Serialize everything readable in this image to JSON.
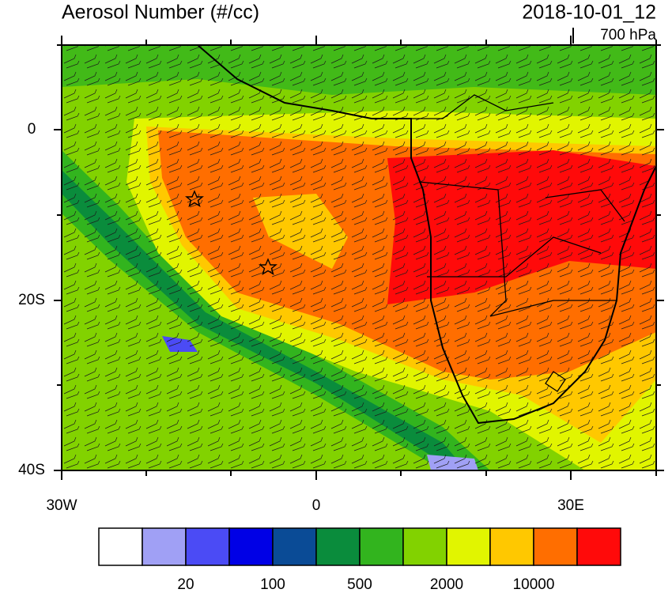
{
  "header": {
    "title": "Aerosol Number (#/cc)",
    "date": "2018-10-01_12",
    "level": "700 hPa"
  },
  "map": {
    "lat_labels": [
      "0",
      "20S",
      "40S"
    ],
    "lon_labels": [
      "30W",
      "0",
      "30E"
    ]
  },
  "colorbar": {
    "colors": [
      "#ffffff",
      "#a0a0f5",
      "#4b4bf5",
      "#0000e6",
      "#0a4b96",
      "#0a8c3c",
      "#32b41e",
      "#82d200",
      "#e1f500",
      "#ffc800",
      "#ff6e00",
      "#ff0a0a"
    ],
    "labels": [
      20,
      100,
      500,
      2000,
      10000
    ]
  }
}
